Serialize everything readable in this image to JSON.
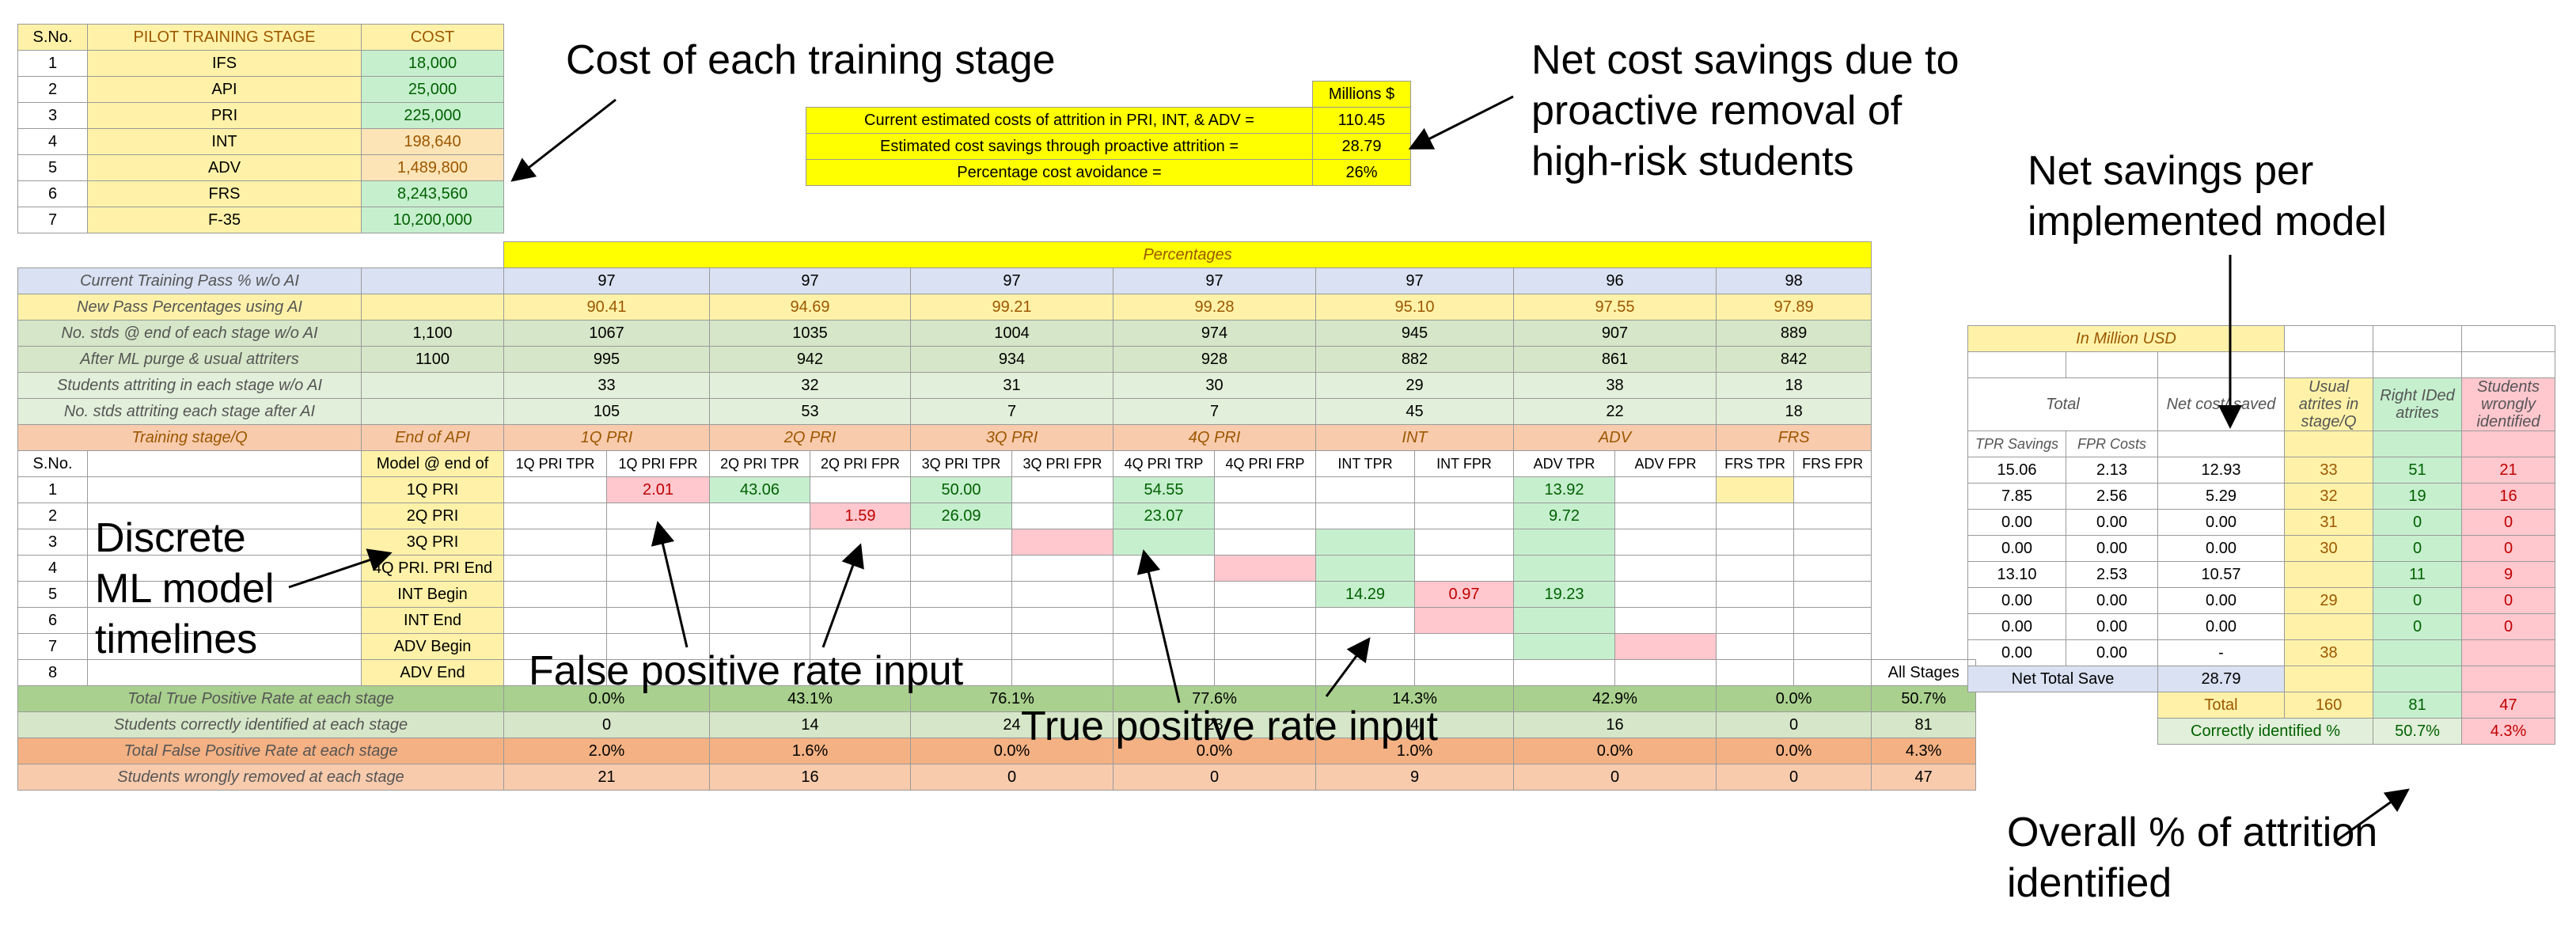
{
  "cost_table": {
    "header": [
      "S.No.",
      "PILOT TRAINING STAGE",
      "COST"
    ],
    "rows": [
      {
        "no": "1",
        "stage": "IFS",
        "cost": "18,000"
      },
      {
        "no": "2",
        "stage": "API",
        "cost": "25,000"
      },
      {
        "no": "3",
        "stage": "PRI",
        "cost": "225,000"
      },
      {
        "no": "4",
        "stage": "INT",
        "cost": "198,640"
      },
      {
        "no": "5",
        "stage": "ADV",
        "cost": "1,489,800"
      },
      {
        "no": "6",
        "stage": "FRS",
        "cost": "8,243,560"
      },
      {
        "no": "7",
        "stage": "F-35",
        "cost": "10,200,000"
      }
    ]
  },
  "summary": {
    "unit": "Millions $",
    "rows": [
      {
        "label": "Current estimated costs of attrition in PRI, INT, & ADV =",
        "value": "110.45"
      },
      {
        "label": "Estimated cost savings through proactive attrition =",
        "value": "28.79"
      },
      {
        "label": "Percentage cost avoidance =",
        "value": "26%"
      }
    ]
  },
  "annotations": {
    "cost_each": "Cost of each training stage",
    "net_cost_savings": "Net cost savings due to proactive removal of high-risk students",
    "net_per_model": "Net savings per implemented model",
    "discrete_ml": "Discrete ML model timelines",
    "fpr_input": "False positive rate input",
    "tpr_input": "True positive rate input",
    "overall_pct": "Overall % of attrition identified"
  },
  "main": {
    "percentages_header": "Percentages",
    "stat_rows": [
      {
        "label": "Current Training Pass % w/o AI",
        "first": "",
        "second": "",
        "vals": [
          "97",
          "97",
          "97",
          "97",
          "97",
          "96",
          "98"
        ]
      },
      {
        "label": "New Pass Percentages using AI",
        "first": "",
        "second": "",
        "vals": [
          "90.41",
          "94.69",
          "99.21",
          "99.28",
          "95.10",
          "97.55",
          "97.89"
        ]
      },
      {
        "label": "No. stds @ end of each stage w/o AI",
        "first": "1,100",
        "second": "",
        "vals": [
          "1067",
          "1035",
          "1004",
          "974",
          "945",
          "907",
          "889"
        ]
      },
      {
        "label": "After ML purge & usual attriters",
        "first": "1100",
        "second": "",
        "vals": [
          "995",
          "942",
          "934",
          "928",
          "882",
          "861",
          "842"
        ]
      },
      {
        "label": "Students attriting in each stage w/o AI",
        "first": "",
        "second": "",
        "vals": [
          "33",
          "32",
          "31",
          "30",
          "29",
          "38",
          "18"
        ]
      },
      {
        "label": "No. stds attriting each stage after AI",
        "first": "",
        "second": "",
        "vals": [
          "105",
          "53",
          "7",
          "7",
          "45",
          "22",
          "18"
        ]
      }
    ],
    "stage_row": {
      "label": "Training stage/Q",
      "first": "End of API",
      "stages": [
        "1Q PRI",
        "2Q PRI",
        "3Q PRI",
        "4Q PRI",
        "INT",
        "ADV",
        "FRS"
      ]
    },
    "col_headers": {
      "sno": "S.No.",
      "model": "Model @ end of",
      "cols": [
        "1Q PRI TPR",
        "1Q PRI FPR",
        "2Q PRI TPR",
        "2Q PRI FPR",
        "3Q PRI TPR",
        "3Q PRI FPR",
        "4Q PRI TRP",
        "4Q PRI FRP",
        "INT TPR",
        "INT FPR",
        "ADV TPR",
        "ADV FPR",
        "FRS TPR",
        "FRS FPR"
      ]
    },
    "models": [
      {
        "no": "1",
        "name": "1Q PRI",
        "cells": [
          "",
          "2.01",
          "43.06",
          "",
          "50.00",
          "",
          "54.55",
          "",
          "",
          "",
          "13.92",
          "",
          "",
          ""
        ]
      },
      {
        "no": "2",
        "name": "2Q PRI",
        "cells": [
          "",
          "",
          "",
          "1.59",
          "26.09",
          "",
          "23.07",
          "",
          "",
          "",
          "9.72",
          "",
          "",
          ""
        ]
      },
      {
        "no": "3",
        "name": "3Q PRI",
        "cells": [
          "",
          "",
          "",
          "",
          "",
          "",
          "",
          "",
          "",
          "",
          "",
          "",
          "",
          ""
        ]
      },
      {
        "no": "4",
        "name": "4Q PRI. PRI End",
        "cells": [
          "",
          "",
          "",
          "",
          "",
          "",
          "",
          "",
          "",
          "",
          "",
          "",
          "",
          ""
        ]
      },
      {
        "no": "5",
        "name": "INT Begin",
        "cells": [
          "",
          "",
          "",
          "",
          "",
          "",
          "",
          "",
          "14.29",
          "0.97",
          "19.23",
          "",
          "",
          ""
        ]
      },
      {
        "no": "6",
        "name": "INT End",
        "cells": [
          "",
          "",
          "",
          "",
          "",
          "",
          "",
          "",
          "",
          "",
          "",
          "",
          "",
          ""
        ]
      },
      {
        "no": "7",
        "name": "ADV Begin",
        "cells": [
          "",
          "",
          "",
          "",
          "",
          "",
          "",
          "",
          "",
          "",
          "",
          "",
          "",
          ""
        ]
      },
      {
        "no": "8",
        "name": "ADV End",
        "cells": [
          "",
          "",
          "",
          "",
          "",
          "",
          "",
          "",
          "",
          "",
          "",
          "",
          "",
          ""
        ]
      }
    ],
    "all_stages_label": "All Stages",
    "totals": [
      {
        "label": "Total True Positive Rate at each stage",
        "vals": [
          "0.0%",
          "43.1%",
          "76.1%",
          "77.6%",
          "14.3%",
          "42.9%",
          "0.0%"
        ],
        "all": "50.7%"
      },
      {
        "label": "Students correctly identified at each stage",
        "vals": [
          "0",
          "14",
          "24",
          "23",
          "4",
          "16",
          "0"
        ],
        "all": "81"
      },
      {
        "label": "Total False Positive Rate at each stage",
        "vals": [
          "2.0%",
          "1.6%",
          "0.0%",
          "0.0%",
          "1.0%",
          "0.0%",
          "0.0%"
        ],
        "all": "4.3%"
      },
      {
        "label": "Students wrongly removed at each stage",
        "vals": [
          "21",
          "16",
          "0",
          "0",
          "9",
          "0",
          "0"
        ],
        "all": "47"
      }
    ]
  },
  "right": {
    "unit": "In Million USD",
    "total_label": "Total",
    "net_cost_label": "Net cost/ saved",
    "usual_label": "Usual atrites in stage/Q",
    "right_label": "Right IDed atrites",
    "wrong_label": "Students wrongly identified",
    "tpr_savings": "TPR Savings",
    "fpr_costs": "FPR Costs",
    "rows": [
      {
        "tpr": "15.06",
        "fpr": "2.13",
        "net": "12.93",
        "usual": "33",
        "right": "51",
        "wrong": "21"
      },
      {
        "tpr": "7.85",
        "fpr": "2.56",
        "net": "5.29",
        "usual": "32",
        "right": "19",
        "wrong": "16"
      },
      {
        "tpr": "0.00",
        "fpr": "0.00",
        "net": "0.00",
        "usual": "31",
        "right": "0",
        "wrong": "0"
      },
      {
        "tpr": "0.00",
        "fpr": "0.00",
        "net": "0.00",
        "usual": "30",
        "right": "0",
        "wrong": "0"
      },
      {
        "tpr": "13.10",
        "fpr": "2.53",
        "net": "10.57",
        "usual": "",
        "right": "11",
        "wrong": "9"
      },
      {
        "tpr": "0.00",
        "fpr": "0.00",
        "net": "0.00",
        "usual": "29",
        "right": "0",
        "wrong": "0"
      },
      {
        "tpr": "0.00",
        "fpr": "0.00",
        "net": "0.00",
        "usual": "",
        "right": "0",
        "wrong": "0"
      },
      {
        "tpr": "0.00",
        "fpr": "0.00",
        "net": "-",
        "usual": "38",
        "right": "",
        "wrong": ""
      }
    ],
    "net_total_label": "Net Total Save",
    "net_total_value": "28.79",
    "total_row_label": "Total",
    "total_usual": "160",
    "total_right": "81",
    "total_wrong": "47",
    "correct_label": "Correctly identified %",
    "correct_pct": "50.7%",
    "wrong_pct": "4.3%"
  }
}
